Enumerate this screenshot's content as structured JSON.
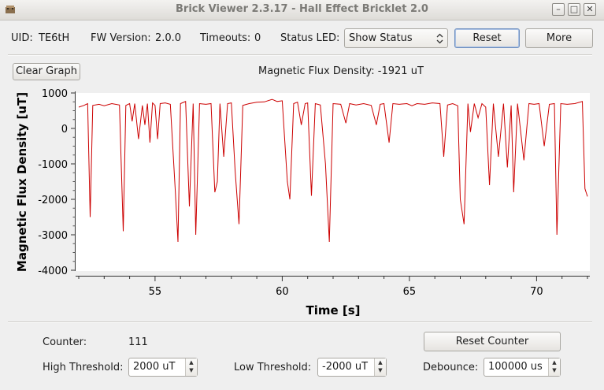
{
  "window": {
    "title": "Brick Viewer 2.3.17 - Hall Effect Bricklet 2.0",
    "minimize_glyph": "–",
    "maximize_glyph": "□",
    "close_glyph": "✕"
  },
  "header": {
    "uid_label": "UID:",
    "uid_value": "TE6tH",
    "fw_label": "FW Version:",
    "fw_value": "2.0.0",
    "timeouts_label": "Timeouts:",
    "timeouts_value": "0",
    "status_led_label": "Status LED:",
    "status_led_value": "Show Status",
    "reset_label": "Reset",
    "more_label": "More"
  },
  "graph": {
    "clear_label": "Clear Graph",
    "current_label": "Magnetic Flux Density: -1921 uT"
  },
  "chart_data": {
    "type": "line",
    "title": "",
    "xlabel": "Time [s]",
    "ylabel": "Magnetic Flux Density [uT]",
    "xlim": [
      52,
      72
    ],
    "ylim": [
      -4000,
      1000
    ],
    "x_ticks": [
      55,
      60,
      65,
      70
    ],
    "y_ticks": [
      1000,
      0,
      -1000,
      -2000,
      -3000,
      -4000
    ],
    "grid": false,
    "series": [
      {
        "color": "#cc0000",
        "points": [
          [
            52.0,
            600
          ],
          [
            52.2,
            650
          ],
          [
            52.35,
            700
          ],
          [
            52.45,
            -2500
          ],
          [
            52.55,
            650
          ],
          [
            52.8,
            680
          ],
          [
            53.0,
            640
          ],
          [
            53.3,
            700
          ],
          [
            53.6,
            660
          ],
          [
            53.75,
            -2900
          ],
          [
            53.85,
            650
          ],
          [
            54.0,
            700
          ],
          [
            54.1,
            200
          ],
          [
            54.2,
            700
          ],
          [
            54.35,
            -300
          ],
          [
            54.5,
            650
          ],
          [
            54.6,
            100
          ],
          [
            54.7,
            700
          ],
          [
            54.8,
            -400
          ],
          [
            54.9,
            720
          ],
          [
            55.0,
            650
          ],
          [
            55.1,
            -300
          ],
          [
            55.2,
            700
          ],
          [
            55.4,
            720
          ],
          [
            55.6,
            680
          ],
          [
            55.8,
            -1800
          ],
          [
            55.9,
            -3200
          ],
          [
            56.0,
            700
          ],
          [
            56.2,
            760
          ],
          [
            56.35,
            -2200
          ],
          [
            56.5,
            700
          ],
          [
            56.6,
            -3000
          ],
          [
            56.75,
            700
          ],
          [
            57.0,
            680
          ],
          [
            57.2,
            700
          ],
          [
            57.35,
            -1800
          ],
          [
            57.45,
            -1500
          ],
          [
            57.55,
            700
          ],
          [
            57.7,
            -800
          ],
          [
            57.85,
            700
          ],
          [
            58.0,
            720
          ],
          [
            58.15,
            -1200
          ],
          [
            58.3,
            -2700
          ],
          [
            58.45,
            650
          ],
          [
            58.7,
            700
          ],
          [
            59.0,
            740
          ],
          [
            59.3,
            750
          ],
          [
            59.6,
            820
          ],
          [
            59.8,
            760
          ],
          [
            60.0,
            780
          ],
          [
            60.2,
            -1500
          ],
          [
            60.3,
            -2000
          ],
          [
            60.45,
            700
          ],
          [
            60.6,
            740
          ],
          [
            60.75,
            100
          ],
          [
            60.9,
            700
          ],
          [
            61.0,
            720
          ],
          [
            61.15,
            -1900
          ],
          [
            61.3,
            700
          ],
          [
            61.5,
            660
          ],
          [
            61.7,
            -1000
          ],
          [
            61.85,
            -3200
          ],
          [
            62.0,
            700
          ],
          [
            62.3,
            680
          ],
          [
            62.5,
            150
          ],
          [
            62.65,
            700
          ],
          [
            62.9,
            660
          ],
          [
            63.2,
            700
          ],
          [
            63.5,
            650
          ],
          [
            63.7,
            100
          ],
          [
            63.85,
            680
          ],
          [
            64.0,
            700
          ],
          [
            64.2,
            -400
          ],
          [
            64.35,
            700
          ],
          [
            64.6,
            680
          ],
          [
            64.9,
            700
          ],
          [
            65.1,
            640
          ],
          [
            65.3,
            700
          ],
          [
            65.6,
            680
          ],
          [
            65.9,
            720
          ],
          [
            66.2,
            700
          ],
          [
            66.35,
            -800
          ],
          [
            66.5,
            660
          ],
          [
            66.7,
            700
          ],
          [
            66.9,
            640
          ],
          [
            67.0,
            -2000
          ],
          [
            67.15,
            -2700
          ],
          [
            67.3,
            700
          ],
          [
            67.4,
            -100
          ],
          [
            67.55,
            700
          ],
          [
            67.7,
            300
          ],
          [
            67.85,
            700
          ],
          [
            68.0,
            600
          ],
          [
            68.15,
            -1600
          ],
          [
            68.3,
            700
          ],
          [
            68.5,
            -800
          ],
          [
            68.7,
            700
          ],
          [
            68.85,
            -1100
          ],
          [
            69.0,
            650
          ],
          [
            69.1,
            -1800
          ],
          [
            69.25,
            700
          ],
          [
            69.5,
            -900
          ],
          [
            69.7,
            700
          ],
          [
            69.9,
            680
          ],
          [
            70.1,
            700
          ],
          [
            70.3,
            -500
          ],
          [
            70.5,
            680
          ],
          [
            70.7,
            700
          ],
          [
            70.8,
            -3000
          ],
          [
            70.95,
            700
          ],
          [
            71.2,
            680
          ],
          [
            71.5,
            700
          ],
          [
            71.8,
            760
          ],
          [
            71.9,
            -1700
          ],
          [
            72.0,
            -1921
          ]
        ]
      }
    ]
  },
  "bottom": {
    "counter_label": "Counter:",
    "counter_value": "111",
    "reset_counter_label": "Reset Counter",
    "high_threshold_label": "High Threshold:",
    "high_threshold_value": "2000 uT",
    "low_threshold_label": "Low Threshold:",
    "low_threshold_value": "-2000 uT",
    "debounce_label": "Debounce:",
    "debounce_value": "100000 us"
  }
}
